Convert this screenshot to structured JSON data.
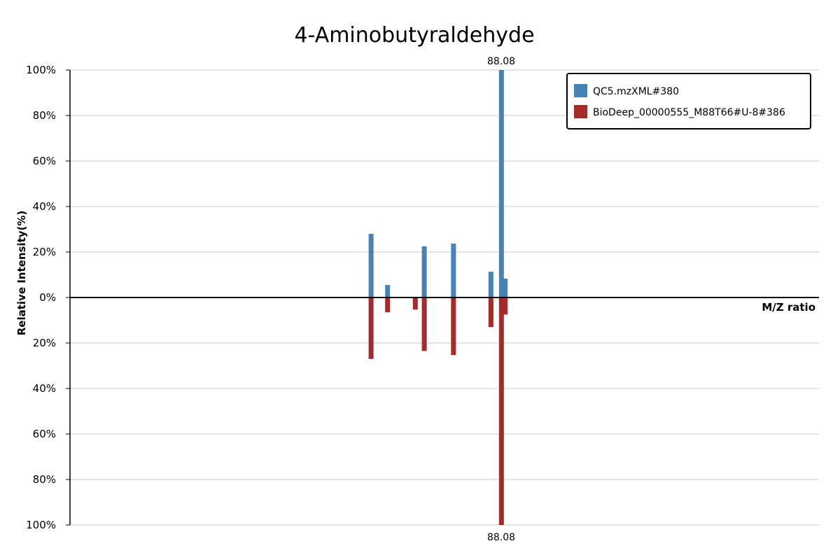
{
  "chart_data": {
    "type": "bar",
    "title": "4-Aminobutyraldehyde",
    "xlabel": "M/Z ratio",
    "ylabel": "Relative Intensity(%)",
    "yticks_top": [
      "100%",
      "80%",
      "60%",
      "40%",
      "20%",
      "0%"
    ],
    "yticks_bottom": [
      "20%",
      "40%",
      "60%",
      "80%",
      "100%"
    ],
    "ylim": [
      -100,
      100
    ],
    "xlim": [
      0,
      100
    ],
    "grid": true,
    "legend_position": "top-right",
    "peak_label_top": "88.08",
    "peak_label_bottom": "88.08",
    "series": [
      {
        "name": "QC5.mzXML#380",
        "color": "#4682b4",
        "direction": "up",
        "x": [
          40.2,
          42.4,
          47.3,
          51.2,
          56.2,
          57.6,
          58.1
        ],
        "values": [
          28,
          5.5,
          22.5,
          23.7,
          11.3,
          100,
          8.3
        ]
      },
      {
        "name": "BioDeep_00000555_M88T66#U-8#386",
        "color": "#a52a2a",
        "direction": "down",
        "x": [
          40.2,
          42.4,
          46.1,
          47.3,
          51.2,
          56.2,
          57.6,
          58.1
        ],
        "values": [
          27,
          6.5,
          5.3,
          23.5,
          25.3,
          13,
          100,
          7.5
        ]
      }
    ]
  }
}
